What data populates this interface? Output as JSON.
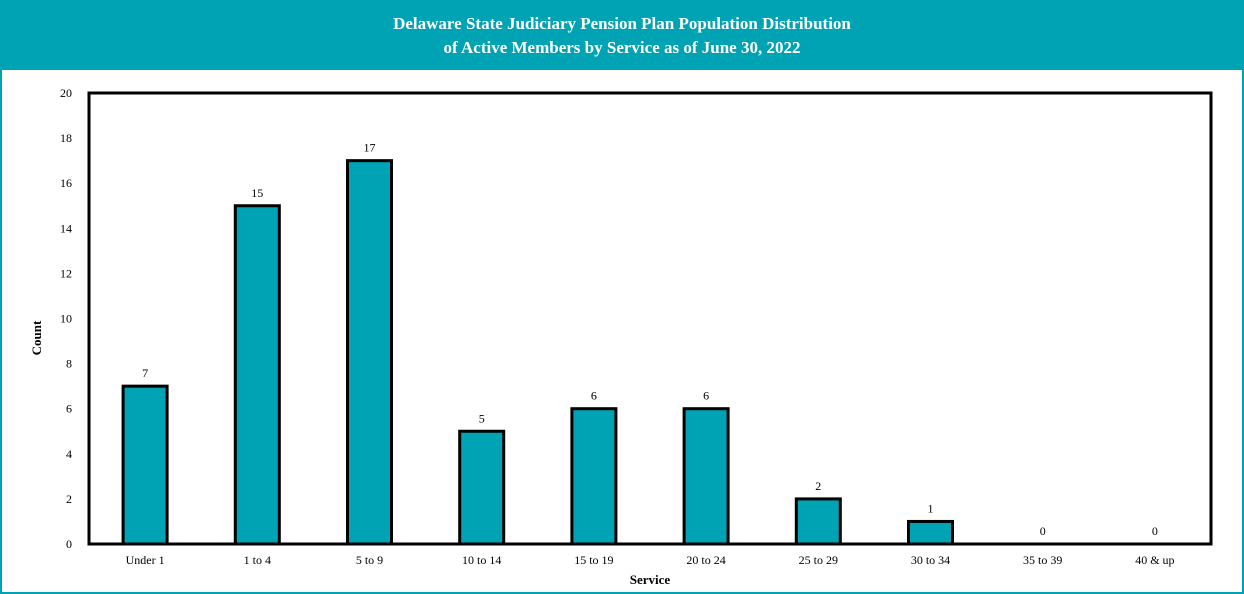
{
  "chart_data": {
    "type": "bar",
    "title_line1": "Delaware State Judiciary Pension Plan Population Distribution",
    "title_line2": "of Active Members by Service as of June 30, 2022",
    "xlabel": "Service",
    "ylabel": "Count",
    "categories": [
      "Under 1",
      "1 to 4",
      "5 to 9",
      "10 to 14",
      "15 to 19",
      "20 to 24",
      "25 to 29",
      "30 to 34",
      "35 to 39",
      "40 & up"
    ],
    "values": [
      7,
      15,
      17,
      5,
      6,
      6,
      2,
      1,
      0,
      0
    ],
    "ylim": [
      0,
      20
    ],
    "yticks": [
      0,
      2,
      4,
      6,
      8,
      10,
      12,
      14,
      16,
      18,
      20
    ],
    "grid": false,
    "legend": "none",
    "bar_color": "#00A3B4",
    "header_color": "#00A3B4"
  }
}
